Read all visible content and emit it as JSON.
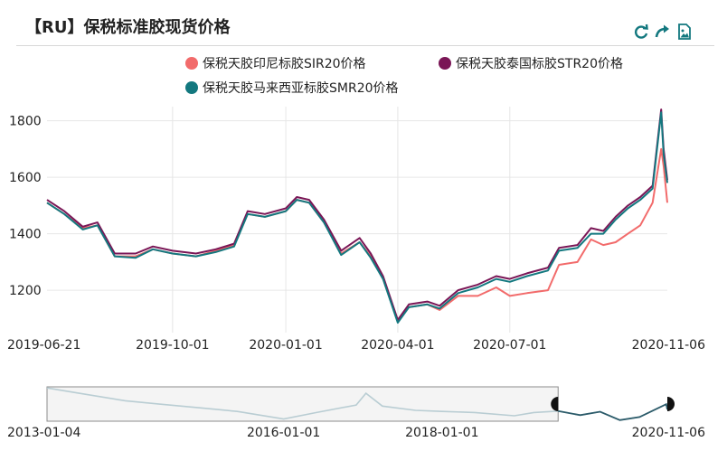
{
  "title": "【RU】保税标准胶现货价格",
  "toolbar": {
    "refresh_icon": "refresh-icon",
    "share_icon": "share-icon",
    "save_icon": "save-image-icon"
  },
  "chart_data": {
    "type": "line",
    "title": "【RU】保税标准胶现货价格",
    "ylim": [
      1050,
      1850
    ],
    "yticks": [
      1200,
      1400,
      1600,
      1800
    ],
    "xlim": [
      "2019-06-21",
      "2020-11-06"
    ],
    "xticks": [
      "2019-06-21",
      "2019-10-01",
      "2020-01-01",
      "2020-04-01",
      "2020-07-01",
      "2020-11-06"
    ],
    "grid": true,
    "legend_position": "top",
    "series": [
      {
        "name": "保税天胶印尼标胶SIR20价格",
        "color": "#f26b6b",
        "points": [
          [
            "2019-06-21",
            1510
          ],
          [
            "2019-07-05",
            1470
          ],
          [
            "2019-07-20",
            1420
          ],
          [
            "2019-08-01",
            1430
          ],
          [
            "2019-08-15",
            1320
          ],
          [
            "2019-09-01",
            1320
          ],
          [
            "2019-09-15",
            1345
          ],
          [
            "2019-10-01",
            1330
          ],
          [
            "2019-10-20",
            1320
          ],
          [
            "2019-11-05",
            1340
          ],
          [
            "2019-11-20",
            1360
          ],
          [
            "2019-12-01",
            1470
          ],
          [
            "2019-12-15",
            1460
          ],
          [
            "2020-01-01",
            1480
          ],
          [
            "2020-01-10",
            1520
          ],
          [
            "2020-01-20",
            1510
          ],
          [
            "2020-02-01",
            1440
          ],
          [
            "2020-02-15",
            1330
          ],
          [
            "2020-03-01",
            1370
          ],
          [
            "2020-03-10",
            1320
          ],
          [
            "2020-03-20",
            1240
          ],
          [
            "2020-04-01",
            1090
          ],
          [
            "2020-04-10",
            1140
          ],
          [
            "2020-04-25",
            1150
          ],
          [
            "2020-05-05",
            1130
          ],
          [
            "2020-05-20",
            1180
          ],
          [
            "2020-06-05",
            1180
          ],
          [
            "2020-06-20",
            1210
          ],
          [
            "2020-07-01",
            1180
          ],
          [
            "2020-07-15",
            1190
          ],
          [
            "2020-08-01",
            1200
          ],
          [
            "2020-08-10",
            1290
          ],
          [
            "2020-08-25",
            1300
          ],
          [
            "2020-09-05",
            1380
          ],
          [
            "2020-09-15",
            1360
          ],
          [
            "2020-09-25",
            1370
          ],
          [
            "2020-10-05",
            1400
          ],
          [
            "2020-10-15",
            1430
          ],
          [
            "2020-10-25",
            1510
          ],
          [
            "2020-11-01",
            1700
          ],
          [
            "2020-11-03",
            1640
          ],
          [
            "2020-11-06",
            1510
          ]
        ]
      },
      {
        "name": "保税天胶泰国标胶STR20价格",
        "color": "#7a1656",
        "points": [
          [
            "2019-06-21",
            1520
          ],
          [
            "2019-07-05",
            1480
          ],
          [
            "2019-07-20",
            1425
          ],
          [
            "2019-08-01",
            1440
          ],
          [
            "2019-08-15",
            1330
          ],
          [
            "2019-09-01",
            1330
          ],
          [
            "2019-09-15",
            1355
          ],
          [
            "2019-10-01",
            1340
          ],
          [
            "2019-10-20",
            1330
          ],
          [
            "2019-11-05",
            1345
          ],
          [
            "2019-11-20",
            1365
          ],
          [
            "2019-12-01",
            1480
          ],
          [
            "2019-12-15",
            1470
          ],
          [
            "2020-01-01",
            1490
          ],
          [
            "2020-01-10",
            1530
          ],
          [
            "2020-01-20",
            1520
          ],
          [
            "2020-02-01",
            1450
          ],
          [
            "2020-02-15",
            1340
          ],
          [
            "2020-03-01",
            1385
          ],
          [
            "2020-03-10",
            1330
          ],
          [
            "2020-03-20",
            1250
          ],
          [
            "2020-04-01",
            1095
          ],
          [
            "2020-04-10",
            1150
          ],
          [
            "2020-04-25",
            1160
          ],
          [
            "2020-05-05",
            1145
          ],
          [
            "2020-05-20",
            1200
          ],
          [
            "2020-06-05",
            1220
          ],
          [
            "2020-06-20",
            1250
          ],
          [
            "2020-07-01",
            1240
          ],
          [
            "2020-07-15",
            1260
          ],
          [
            "2020-08-01",
            1280
          ],
          [
            "2020-08-10",
            1350
          ],
          [
            "2020-08-25",
            1360
          ],
          [
            "2020-09-05",
            1420
          ],
          [
            "2020-09-15",
            1410
          ],
          [
            "2020-09-25",
            1460
          ],
          [
            "2020-10-05",
            1500
          ],
          [
            "2020-10-15",
            1530
          ],
          [
            "2020-10-25",
            1570
          ],
          [
            "2020-11-01",
            1840
          ],
          [
            "2020-11-03",
            1700
          ],
          [
            "2020-11-06",
            1590
          ]
        ]
      },
      {
        "name": "保税天胶马来西亚标胶SMR20价格",
        "color": "#13787f",
        "points": [
          [
            "2019-06-21",
            1510
          ],
          [
            "2019-07-05",
            1470
          ],
          [
            "2019-07-20",
            1415
          ],
          [
            "2019-08-01",
            1430
          ],
          [
            "2019-08-15",
            1320
          ],
          [
            "2019-09-01",
            1315
          ],
          [
            "2019-09-15",
            1345
          ],
          [
            "2019-10-01",
            1330
          ],
          [
            "2019-10-20",
            1320
          ],
          [
            "2019-11-05",
            1335
          ],
          [
            "2019-11-20",
            1355
          ],
          [
            "2019-12-01",
            1470
          ],
          [
            "2019-12-15",
            1460
          ],
          [
            "2020-01-01",
            1480
          ],
          [
            "2020-01-10",
            1520
          ],
          [
            "2020-01-20",
            1510
          ],
          [
            "2020-02-01",
            1440
          ],
          [
            "2020-02-15",
            1325
          ],
          [
            "2020-03-01",
            1370
          ],
          [
            "2020-03-10",
            1315
          ],
          [
            "2020-03-20",
            1240
          ],
          [
            "2020-04-01",
            1085
          ],
          [
            "2020-04-10",
            1140
          ],
          [
            "2020-04-25",
            1150
          ],
          [
            "2020-05-05",
            1135
          ],
          [
            "2020-05-20",
            1190
          ],
          [
            "2020-06-05",
            1210
          ],
          [
            "2020-06-20",
            1240
          ],
          [
            "2020-07-01",
            1230
          ],
          [
            "2020-07-15",
            1250
          ],
          [
            "2020-08-01",
            1270
          ],
          [
            "2020-08-10",
            1340
          ],
          [
            "2020-08-25",
            1350
          ],
          [
            "2020-09-05",
            1400
          ],
          [
            "2020-09-15",
            1400
          ],
          [
            "2020-09-25",
            1450
          ],
          [
            "2020-10-05",
            1490
          ],
          [
            "2020-10-15",
            1520
          ],
          [
            "2020-10-25",
            1560
          ],
          [
            "2020-11-01",
            1830
          ],
          [
            "2020-11-03",
            1680
          ],
          [
            "2020-11-06",
            1580
          ]
        ]
      }
    ],
    "navigator": {
      "xlim": [
        "2013-01-04",
        "2020-11-06"
      ],
      "xticks": [
        "2013-01-04",
        "2016-01-01",
        "2018-01-01",
        "2020-11-06"
      ],
      "selected_range": [
        "2019-06-21",
        "2020-11-06"
      ],
      "overview_points": [
        [
          "2013-01-04",
          2600
        ],
        [
          "2013-06-01",
          2350
        ],
        [
          "2014-01-01",
          2000
        ],
        [
          "2014-06-01",
          1850
        ],
        [
          "2015-01-01",
          1650
        ],
        [
          "2015-06-01",
          1500
        ],
        [
          "2016-01-01",
          1150
        ],
        [
          "2016-06-01",
          1450
        ],
        [
          "2016-12-01",
          1800
        ],
        [
          "2017-01-15",
          2350
        ],
        [
          "2017-04-01",
          1750
        ],
        [
          "2017-09-01",
          1550
        ],
        [
          "2018-01-01",
          1500
        ],
        [
          "2018-06-01",
          1450
        ],
        [
          "2018-12-01",
          1300
        ],
        [
          "2019-03-01",
          1450
        ],
        [
          "2019-06-21",
          1520
        ],
        [
          "2019-10-01",
          1330
        ],
        [
          "2020-01-01",
          1490
        ],
        [
          "2020-04-01",
          1095
        ],
        [
          "2020-07-01",
          1240
        ],
        [
          "2020-11-01",
          1840
        ],
        [
          "2020-11-06",
          1590
        ]
      ]
    }
  }
}
